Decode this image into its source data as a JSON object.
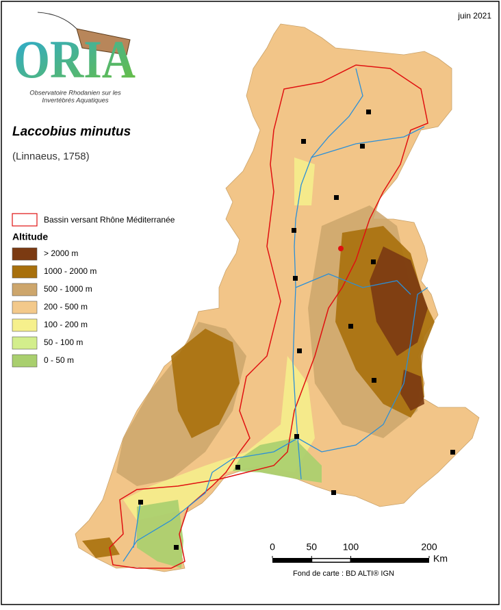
{
  "date": "juin 2021",
  "logo": {
    "name": "ORIA",
    "caption": [
      "Observatoire Rhodanien sur les",
      "Invertébrés Aquatiques"
    ]
  },
  "species": {
    "name": "Laccobius minutus",
    "author": "(Linnaeus, 1758)"
  },
  "legend": {
    "basin": "Bassin versant Rhône Méditerranée",
    "altitude_title": "Altitude",
    "classes": [
      {
        "label": "> 2000 m",
        "color": "#7b3a12"
      },
      {
        "label": "1000 - 2000 m",
        "color": "#a8700c"
      },
      {
        "label": "500 - 1000 m",
        "color": "#cda66c"
      },
      {
        "label": "200 - 500 m",
        "color": "#f3c98b"
      },
      {
        "label": "100 - 200 m",
        "color": "#f6f08c"
      },
      {
        "label": "50 - 100 m",
        "color": "#d3ee8c"
      },
      {
        "label": "0 - 50 m",
        "color": "#a9cf6e"
      }
    ]
  },
  "scale_bar": {
    "ticks": [
      0,
      50,
      100,
      200
    ],
    "unit": "Km"
  },
  "source": "Fond de carte : BD ALTI® IGN"
}
